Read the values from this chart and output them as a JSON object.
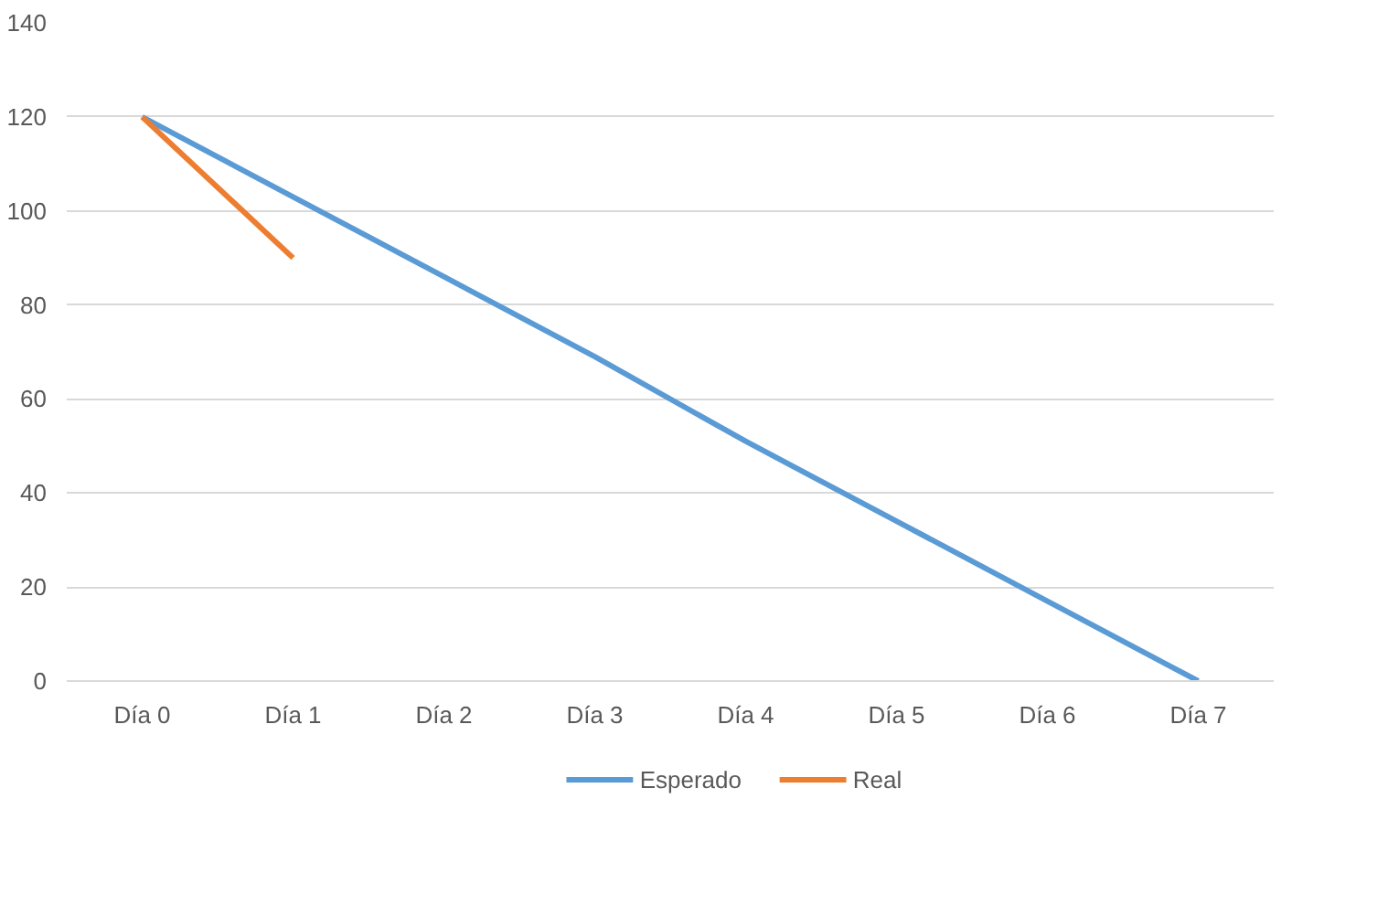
{
  "chart_data": {
    "type": "line",
    "categories": [
      "Día 0",
      "Día 1",
      "Día 2",
      "Día 3",
      "Día 4",
      "Día 5",
      "Día 6",
      "Día 7"
    ],
    "series": [
      {
        "name": "Esperado",
        "color": "#5b9bd5",
        "values": [
          120,
          103,
          86,
          69,
          51,
          34,
          17,
          0
        ]
      },
      {
        "name": "Real",
        "color": "#ed7d31",
        "values": [
          120,
          90,
          null,
          null,
          null,
          null,
          null,
          null
        ]
      }
    ],
    "ylim": [
      0,
      140
    ],
    "yticks": [
      0,
      20,
      40,
      60,
      80,
      100,
      120,
      140
    ],
    "grid": "y",
    "legend": "bottom",
    "marker": "none",
    "line_style": "solid"
  }
}
